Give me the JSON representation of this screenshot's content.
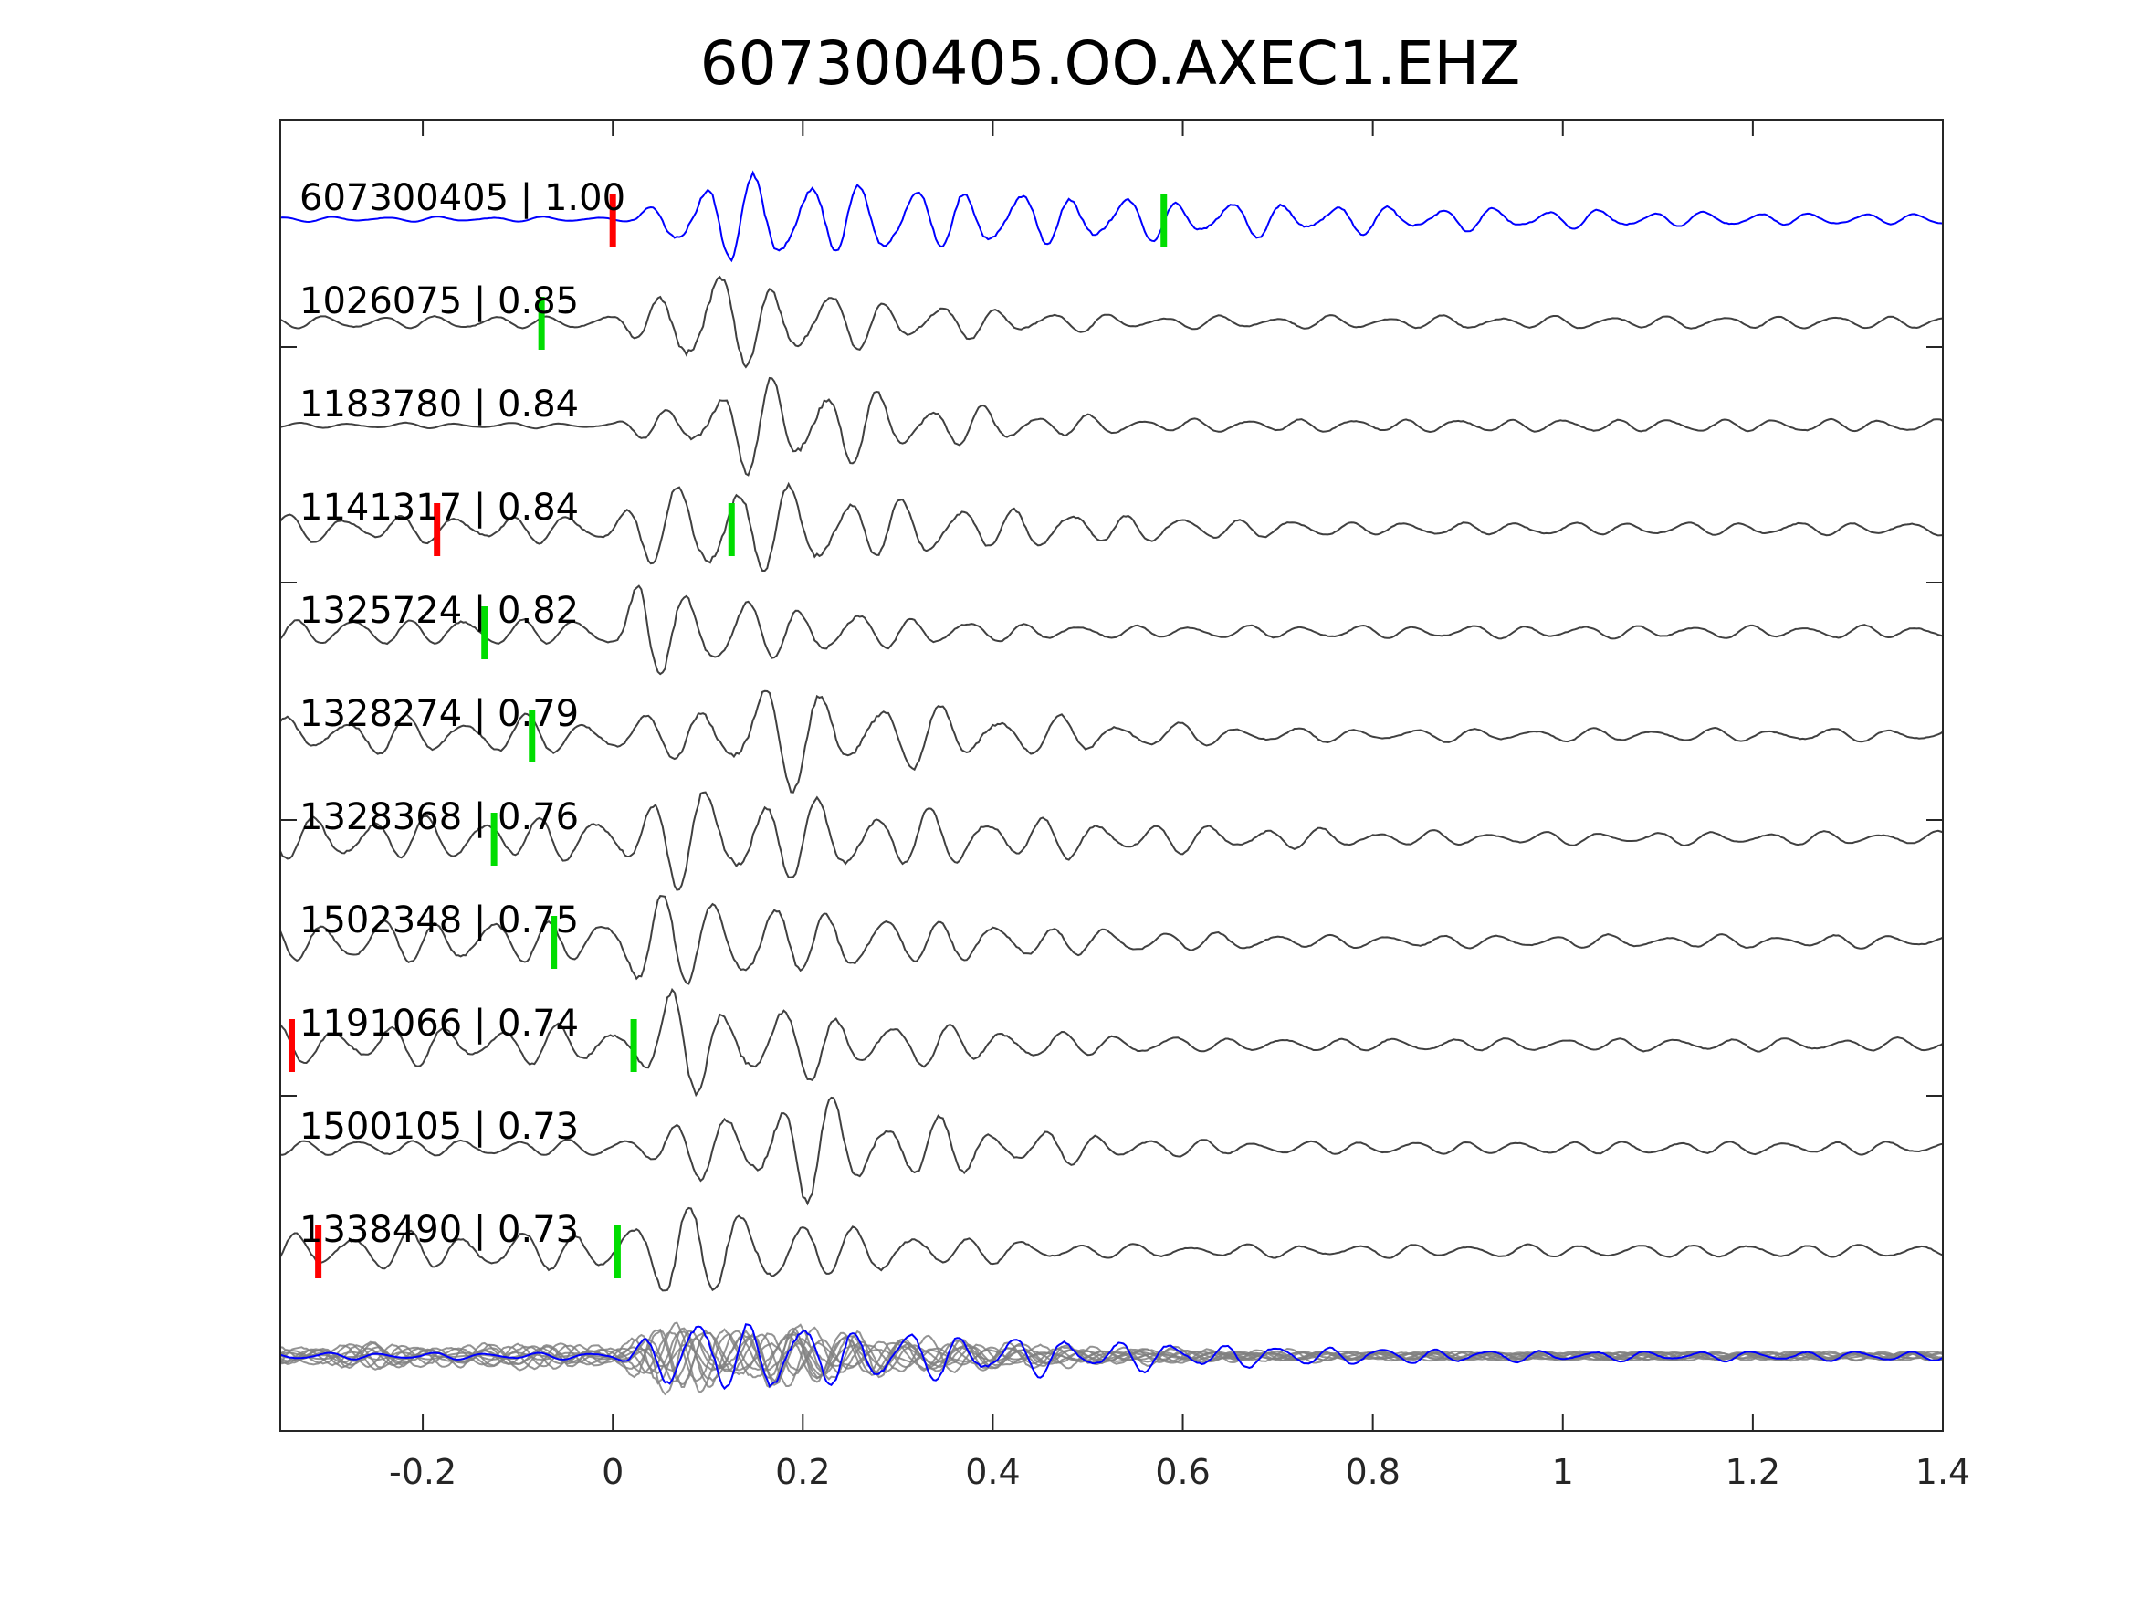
{
  "chart_data": {
    "type": "line",
    "title": "607300405.OO.AXEC1.EHZ",
    "xlabel": "",
    "ylabel": "",
    "xlim": [
      -0.35,
      1.4
    ],
    "x_ticks": [
      -0.2,
      0,
      0.2,
      0.4,
      0.6,
      0.8,
      1,
      1.2,
      1.4
    ],
    "x_tick_labels": [
      "-0.2",
      "0",
      "0.2",
      "0.4",
      "0.6",
      "0.8",
      "1",
      "1.2",
      "1.4"
    ],
    "grid": false,
    "legend": false,
    "colors": {
      "reference": "#0000ff",
      "trace": "#404040",
      "stack": "#808080",
      "pick_red": "#ff0000",
      "pick_green": "#00dd00",
      "axis": "#262626"
    },
    "series": [
      {
        "id": "607300405",
        "cc": "1.00",
        "label": "607300405 | 1.00",
        "reference": true,
        "red_pick": 0.0,
        "green_pick": 0.58,
        "onset": 0.02,
        "freq": 18,
        "pre": 0.05,
        "post": 0.7,
        "peak": 0.09,
        "decay": 0.5,
        "seed": 1
      },
      {
        "id": "1026075",
        "cc": "0.85",
        "label": "1026075 | 0.85",
        "red_pick": null,
        "green_pick": -0.075,
        "onset": 0.0,
        "freq": 17,
        "pre": 0.12,
        "post": 1.0,
        "peak": 0.1,
        "decay": 0.2,
        "seed": 2
      },
      {
        "id": "1183780",
        "cc": "0.84",
        "label": "1183780 | 0.84",
        "red_pick": null,
        "green_pick": null,
        "onset": 0.0,
        "freq": 18,
        "pre": 0.05,
        "post": 1.0,
        "peak": 0.18,
        "decay": 0.17,
        "seed": 3
      },
      {
        "id": "1141317",
        "cc": "0.84",
        "label": "1141317 | 0.84",
        "red_pick": -0.185,
        "green_pick": 0.125,
        "onset": -0.02,
        "freq": 17,
        "pre": 0.25,
        "post": 0.8,
        "peak": 0.12,
        "decay": 0.3,
        "seed": 4
      },
      {
        "id": "1325724",
        "cc": "0.82",
        "label": "1325724 | 0.82",
        "red_pick": null,
        "green_pick": -0.135,
        "onset": 0.0,
        "freq": 17,
        "pre": 0.25,
        "post": 0.85,
        "peak": 0.03,
        "decay": 0.2,
        "seed": 5
      },
      {
        "id": "1328274",
        "cc": "0.79",
        "label": "1328274 | 0.79",
        "red_pick": null,
        "green_pick": -0.085,
        "onset": 0.05,
        "freq": 16,
        "pre": 0.35,
        "post": 0.9,
        "peak": 0.12,
        "decay": 0.25,
        "seed": 6
      },
      {
        "id": "1328368",
        "cc": "0.76",
        "label": "1328368 | 0.76",
        "red_pick": null,
        "green_pick": -0.125,
        "onset": 0.0,
        "freq": 17,
        "pre": 0.4,
        "post": 0.9,
        "peak": 0.08,
        "decay": 0.35,
        "seed": 7
      },
      {
        "id": "1502348",
        "cc": "0.75",
        "label": "1502348 | 0.75",
        "red_pick": null,
        "green_pick": -0.062,
        "onset": 0.0,
        "freq": 17,
        "pre": 0.4,
        "post": 0.95,
        "peak": 0.04,
        "decay": 0.3,
        "seed": 8
      },
      {
        "id": "1191066",
        "cc": "0.74",
        "label": "1191066 | 0.74",
        "red_pick": -0.338,
        "green_pick": 0.022,
        "onset": 0.02,
        "freq": 17,
        "pre": 0.35,
        "post": 0.95,
        "peak": 0.05,
        "decay": 0.25,
        "seed": 9
      },
      {
        "id": "1500105",
        "cc": "0.73",
        "label": "1500105 | 0.73",
        "red_pick": null,
        "green_pick": null,
        "onset": 0.0,
        "freq": 18,
        "pre": 0.15,
        "post": 1.0,
        "peak": 0.2,
        "decay": 0.2,
        "seed": 10
      },
      {
        "id": "1338490",
        "cc": "0.73",
        "label": "1338490 | 0.73",
        "red_pick": -0.31,
        "green_pick": 0.005,
        "onset": 0.0,
        "freq": 17,
        "pre": 0.35,
        "post": 0.9,
        "peak": 0.07,
        "decay": 0.2,
        "seed": 11
      }
    ],
    "stack": {
      "description_members": "all traces overlaid",
      "freq": 18,
      "onset": 0.0,
      "peak": 0.1,
      "decay": 0.35
    }
  }
}
